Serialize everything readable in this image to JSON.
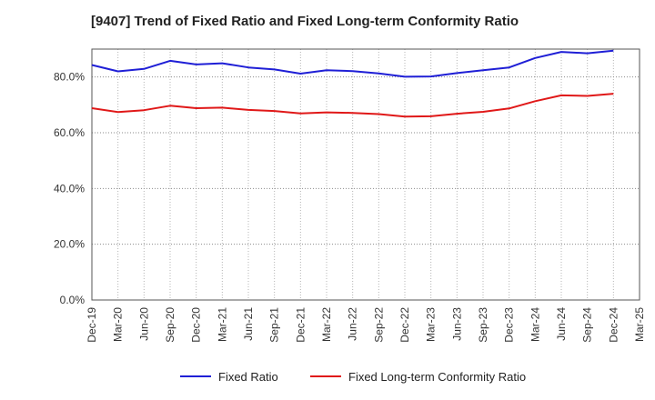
{
  "chart_data": {
    "type": "line",
    "title": "[9407]  Trend of Fixed Ratio and Fixed Long-term Conformity Ratio",
    "xlabel": "",
    "ylabel": "",
    "x_tick_labels": [
      "Dec-19",
      "Mar-20",
      "Jun-20",
      "Sep-20",
      "Dec-20",
      "Mar-21",
      "Jun-21",
      "Sep-21",
      "Dec-21",
      "Mar-22",
      "Jun-22",
      "Sep-22",
      "Dec-22",
      "Mar-23",
      "Jun-23",
      "Sep-23",
      "Dec-23",
      "Mar-24",
      "Jun-24",
      "Sep-24",
      "Dec-24",
      "Mar-25"
    ],
    "y_tick_labels": [
      "0.0%",
      "20.0%",
      "40.0%",
      "60.0%",
      "80.0%"
    ],
    "y_ticks": [
      0,
      20,
      40,
      60,
      80
    ],
    "ylim": [
      0,
      90
    ],
    "grid": true,
    "legend_position": "bottom",
    "x": [
      "Dec-19",
      "Mar-20",
      "Jun-20",
      "Sep-20",
      "Dec-20",
      "Mar-21",
      "Jun-21",
      "Sep-21",
      "Dec-21",
      "Mar-22",
      "Jun-22",
      "Sep-22",
      "Dec-22",
      "Mar-23",
      "Jun-23",
      "Sep-23",
      "Dec-23",
      "Mar-24",
      "Jun-24",
      "Sep-24",
      "Dec-24"
    ],
    "series": [
      {
        "name": "Fixed Ratio",
        "color": "#1f1fd6",
        "values": [
          84.3,
          82.0,
          82.9,
          85.8,
          84.5,
          84.9,
          83.4,
          82.7,
          81.2,
          82.4,
          82.1,
          81.3,
          80.1,
          80.2,
          81.4,
          82.4,
          83.4,
          86.8,
          89.0,
          88.5,
          89.4
        ]
      },
      {
        "name": "Fixed Long-term Conformity Ratio",
        "color": "#e01818",
        "values": [
          68.8,
          67.4,
          68.1,
          69.7,
          68.8,
          69.0,
          68.2,
          67.8,
          66.9,
          67.3,
          67.1,
          66.7,
          65.8,
          65.9,
          66.8,
          67.5,
          68.7,
          71.3,
          73.4,
          73.2,
          74.0
        ]
      }
    ]
  }
}
